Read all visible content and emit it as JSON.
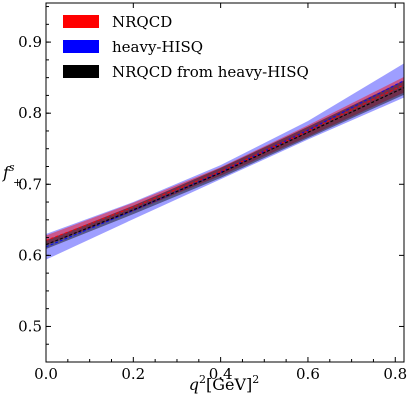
{
  "chart_data": {
    "type": "area",
    "title": "",
    "xlabel": "q",
    "xlabel_sup": "2",
    "xlabel_unit": "[GeV]",
    "xlabel_unit_sup": "2",
    "ylabel": "f",
    "ylabel_sup": "s",
    "ylabel_sub": "+",
    "xlim": [
      0.0,
      0.82
    ],
    "ylim": [
      0.45,
      0.955
    ],
    "xticks": [
      "0.0",
      "0.2",
      "0.4",
      "0.6",
      "0.8"
    ],
    "xtick_values": [
      0.0,
      0.2,
      0.4,
      0.6,
      0.8
    ],
    "yticks": [
      "0.5",
      "0.6",
      "0.7",
      "0.8",
      "0.9"
    ],
    "ytick_values": [
      0.5,
      0.6,
      0.7,
      0.8,
      0.9
    ],
    "grid": false,
    "legend_position": "top-left",
    "series": [
      {
        "name": "heavy-HISQ",
        "color": "#0000ff",
        "opacity": 0.38,
        "x": [
          0.0,
          0.2,
          0.4,
          0.6,
          0.82
        ],
        "lower": [
          0.594,
          0.651,
          0.707,
          0.763,
          0.822
        ],
        "central": [
          0.612,
          0.663,
          0.717,
          0.776,
          0.846
        ],
        "upper": [
          0.63,
          0.675,
          0.727,
          0.789,
          0.87
        ]
      },
      {
        "name": "NRQCD",
        "color": "#ff0000",
        "opacity": 0.45,
        "x": [
          0.0,
          0.2,
          0.4,
          0.6,
          0.82
        ],
        "lower": [
          0.614,
          0.662,
          0.712,
          0.767,
          0.829
        ],
        "central": [
          0.621,
          0.668,
          0.718,
          0.775,
          0.84
        ],
        "upper": [
          0.628,
          0.674,
          0.724,
          0.783,
          0.851
        ]
      },
      {
        "name": "NRQCD from heavy-HISQ",
        "color": "#000000",
        "opacity": 0.45,
        "x": [
          0.0,
          0.2,
          0.4,
          0.6,
          0.82
        ],
        "lower": [
          0.609,
          0.658,
          0.709,
          0.765,
          0.826
        ],
        "central": [
          0.615,
          0.664,
          0.716,
          0.773,
          0.836
        ],
        "upper": [
          0.621,
          0.67,
          0.723,
          0.781,
          0.846
        ]
      }
    ]
  }
}
